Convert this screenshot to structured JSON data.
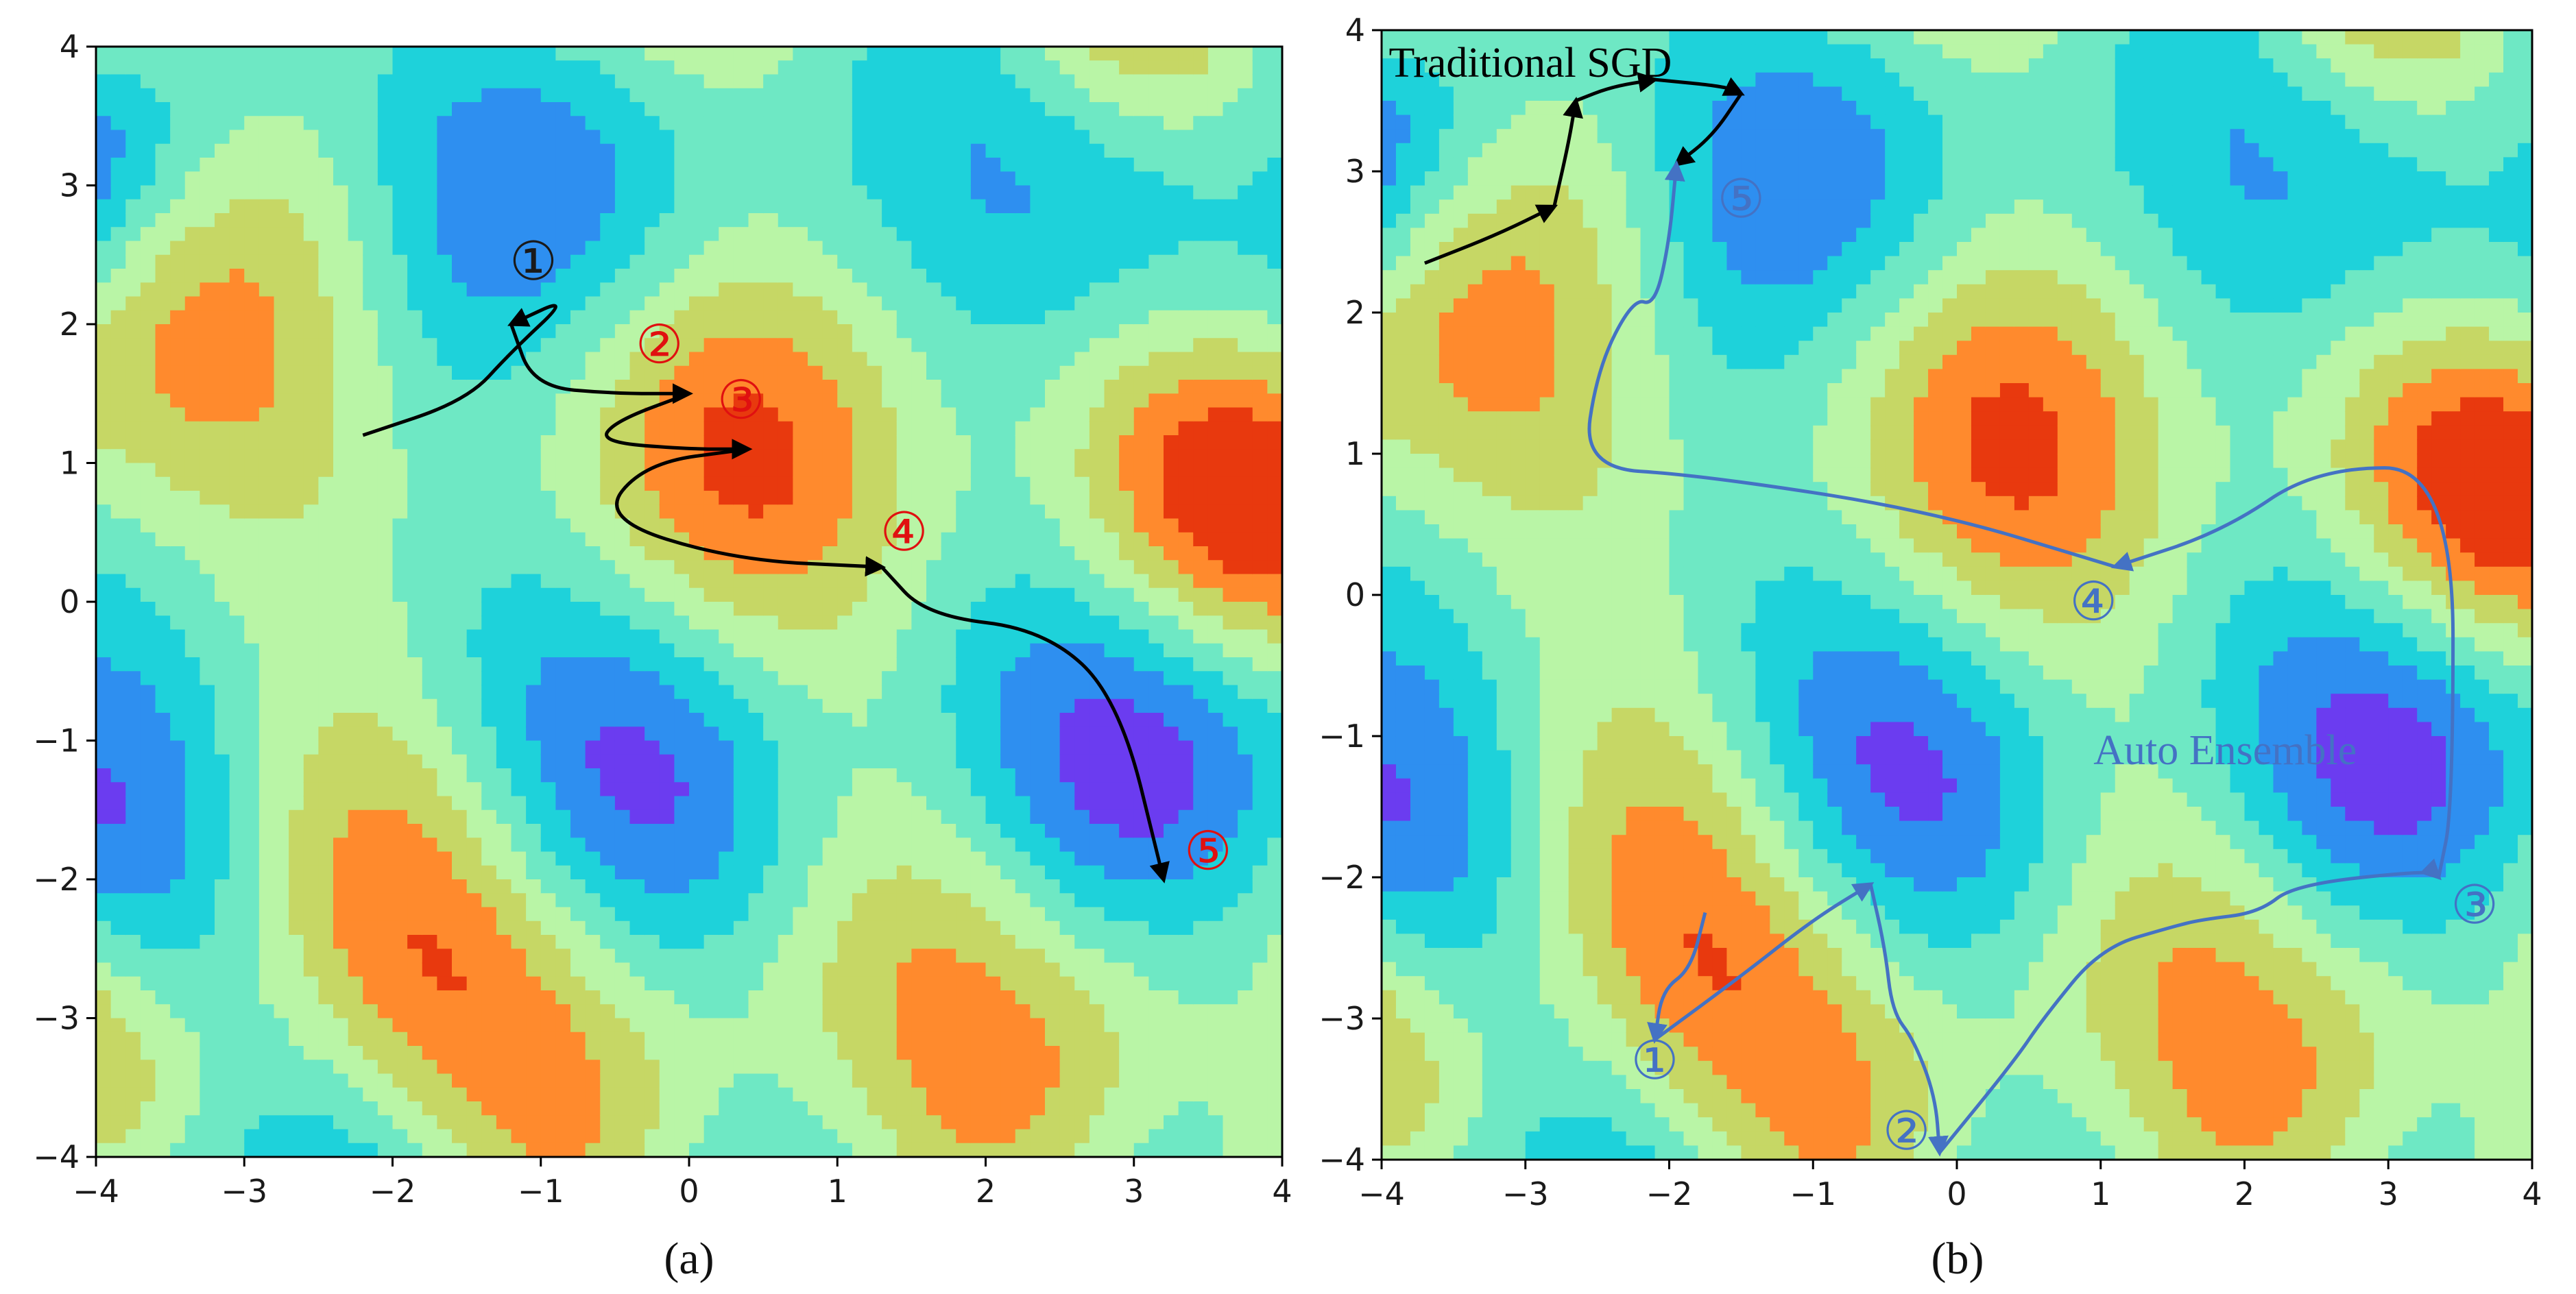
{
  "chart_data": [
    {
      "type": "contour",
      "caption": "(a)",
      "xlim": [
        -4,
        4
      ],
      "ylim": [
        -4,
        4
      ],
      "xticks": [
        -4,
        -3,
        -2,
        -1,
        0,
        1,
        2,
        3,
        4
      ],
      "yticks": [
        -4,
        -3,
        -2,
        -1,
        0,
        1,
        2,
        3,
        4
      ],
      "xtick_labels": [
        "−4",
        "−3",
        "−2",
        "−1",
        "0",
        "1",
        "2",
        "3",
        "4"
      ],
      "ytick_labels": [
        "−4",
        "−3",
        "−2",
        "−1",
        "0",
        "1",
        "2",
        "3",
        "4"
      ],
      "colormap": [
        "#6b3cf0",
        "#2e8ff0",
        "#1ed2da",
        "#6ee8c4",
        "#b9f5a6",
        "#c6d765",
        "#ff8a2d",
        "#e8390e"
      ],
      "paths": [
        {
          "color": "#000000",
          "points": [
            [
              -2.2,
              1.2
            ],
            [
              -1.5,
              1.45
            ],
            [
              -1.2,
              1.8
            ],
            [
              -0.8,
              2.2
            ],
            [
              -1.2,
              2.0
            ],
            [
              -1.05,
              1.55
            ],
            [
              -0.5,
              1.5
            ],
            [
              0.0,
              1.5
            ],
            [
              -0.5,
              1.3
            ],
            [
              -0.6,
              1.15
            ],
            [
              0.0,
              1.1
            ],
            [
              0.4,
              1.1
            ],
            [
              -0.3,
              1.0
            ],
            [
              -0.6,
              0.6
            ],
            [
              0.3,
              0.3
            ],
            [
              1.3,
              0.25
            ],
            [
              1.6,
              -0.1
            ],
            [
              2.4,
              -0.2
            ],
            [
              2.9,
              -0.7
            ],
            [
              3.2,
              -2.0
            ]
          ],
          "arrow_at": [
            4,
            7,
            11,
            15,
            19
          ],
          "markers": [
            {
              "label": "①",
              "x": -1.05,
              "y": 2.45,
              "color": "#1a1a1a",
              "fill": "#eaf78a"
            },
            {
              "label": "②",
              "x": -0.2,
              "y": 1.85,
              "color": "#e01010",
              "fill": "#e8390e"
            },
            {
              "label": "③",
              "x": 0.35,
              "y": 1.45,
              "color": "#e01010",
              "fill": "#e8390e"
            },
            {
              "label": "④",
              "x": 1.45,
              "y": 0.5,
              "color": "#e01010",
              "fill": "#e8390e"
            },
            {
              "label": "⑤",
              "x": 3.5,
              "y": -1.8,
              "color": "#e01010",
              "fill": "#e8390e"
            }
          ]
        }
      ],
      "annotations": []
    },
    {
      "type": "contour",
      "caption": "(b)",
      "xlim": [
        -4,
        4
      ],
      "ylim": [
        -4,
        4
      ],
      "xticks": [
        -4,
        -3,
        -2,
        -1,
        0,
        1,
        2,
        3,
        4
      ],
      "yticks": [
        -4,
        -3,
        -2,
        -1,
        0,
        1,
        2,
        3,
        4
      ],
      "xtick_labels": [
        "−4",
        "−3",
        "−2",
        "−1",
        "0",
        "1",
        "2",
        "3",
        "4"
      ],
      "ytick_labels": [
        "−4",
        "−3",
        "−2",
        "−1",
        "0",
        "1",
        "2",
        "3",
        "4"
      ],
      "colormap": [
        "#6b3cf0",
        "#2e8ff0",
        "#1ed2da",
        "#6ee8c4",
        "#b9f5a6",
        "#c6d765",
        "#ff8a2d",
        "#e8390e"
      ],
      "paths": [
        {
          "name": "Traditional SGD",
          "color": "#000000",
          "points": [
            [
              -3.7,
              2.35
            ],
            [
              -3.2,
              2.55
            ],
            [
              -2.8,
              2.75
            ],
            [
              -2.7,
              3.2
            ],
            [
              -2.65,
              3.5
            ],
            [
              -2.4,
              3.6
            ],
            [
              -2.1,
              3.65
            ],
            [
              -1.6,
              3.6
            ],
            [
              -1.5,
              3.55
            ],
            [
              -1.7,
              3.25
            ],
            [
              -1.95,
              3.05
            ]
          ],
          "arrow_at": [
            2,
            4,
            6,
            8,
            10
          ],
          "markers": []
        },
        {
          "name": "Auto Ensemble",
          "color": "#4472c4",
          "points": [
            [
              -1.75,
              -2.25
            ],
            [
              -1.85,
              -2.65
            ],
            [
              -2.05,
              -2.8
            ],
            [
              -2.1,
              -3.15
            ],
            [
              -1.5,
              -2.7
            ],
            [
              -1.0,
              -2.3
            ],
            [
              -0.6,
              -2.05
            ],
            [
              -0.5,
              -2.5
            ],
            [
              -0.45,
              -2.95
            ],
            [
              -0.3,
              -3.15
            ],
            [
              -0.15,
              -3.55
            ],
            [
              -0.12,
              -3.95
            ],
            [
              0.4,
              -3.3
            ],
            [
              0.6,
              -3.0
            ],
            [
              1.0,
              -2.5
            ],
            [
              1.5,
              -2.35
            ],
            [
              1.7,
              -2.3
            ],
            [
              2.1,
              -2.25
            ],
            [
              2.35,
              -2.05
            ],
            [
              3.3,
              -1.95
            ],
            [
              3.35,
              -2.0
            ],
            [
              3.45,
              -1.5
            ],
            [
              3.45,
              0.9
            ],
            [
              2.5,
              0.9
            ],
            [
              1.85,
              0.45
            ],
            [
              1.1,
              0.2
            ],
            [
              -0.2,
              0.6
            ],
            [
              -1.8,
              0.85
            ],
            [
              -2.6,
              0.9
            ],
            [
              -2.5,
              1.6
            ],
            [
              -2.25,
              2.1
            ],
            [
              -2.1,
              2.05
            ],
            [
              -2.0,
              2.5
            ],
            [
              -1.95,
              3.05
            ]
          ],
          "arrow_at": [
            3,
            6,
            11,
            20,
            25,
            33
          ],
          "markers": [
            {
              "label": "①",
              "x": -2.1,
              "y": -3.3,
              "color": "#4472c4",
              "fill": "#e8390e"
            },
            {
              "label": "②",
              "x": -0.35,
              "y": -3.8,
              "color": "#4472c4",
              "fill": "#e8390e"
            },
            {
              "label": "③",
              "x": 3.6,
              "y": -2.2,
              "color": "#4472c4",
              "fill": "#ff8a2d"
            },
            {
              "label": "④",
              "x": 0.95,
              "y": -0.05,
              "color": "#4472c4",
              "fill": "#ff8a2d"
            },
            {
              "label": "⑤",
              "x": -1.5,
              "y": 2.8,
              "color": "#4472c4",
              "fill": "#ff8a2d"
            }
          ]
        }
      ],
      "annotations": [
        {
          "text": "Traditional SGD",
          "x": -3.95,
          "y": 3.67,
          "color": "#000000"
        },
        {
          "text": "Auto Ensemble",
          "x": 0.95,
          "y": -1.2,
          "color": "#4472c4"
        }
      ]
    }
  ]
}
